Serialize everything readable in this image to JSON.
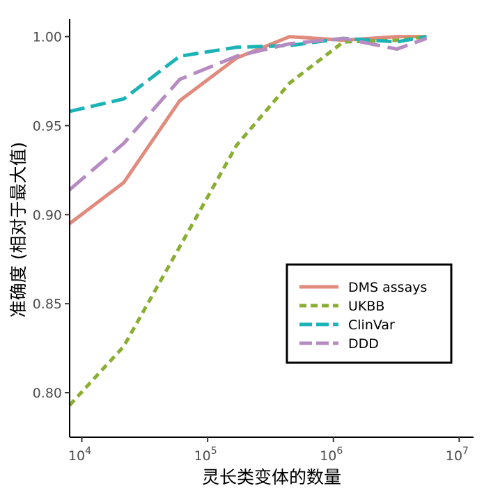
{
  "chart_data": {
    "type": "line",
    "xlabel": "灵长类变体的数量",
    "ylabel": "准确度 (相对于最大值)",
    "x_scale": "log10",
    "xlim": [
      8000,
      13000000
    ],
    "ylim": [
      0.775,
      1.01
    ],
    "x_ticks": [
      {
        "value": 10000,
        "base": "10",
        "exp": "4"
      },
      {
        "value": 100000,
        "base": "10",
        "exp": "5"
      },
      {
        "value": 1000000,
        "base": "10",
        "exp": "6"
      },
      {
        "value": 10000000,
        "base": "10",
        "exp": "7"
      }
    ],
    "y_ticks": [
      {
        "value": 0.8,
        "label": "0.80"
      },
      {
        "value": 0.85,
        "label": "0.85"
      },
      {
        "value": 0.9,
        "label": "0.90"
      },
      {
        "value": 0.95,
        "label": "0.95"
      },
      {
        "value": 1.0,
        "label": "1.00"
      }
    ],
    "grid": false,
    "legend_position": "bottom-right",
    "series": [
      {
        "name": "DMS assays",
        "color": "#E08B7D",
        "dash": "solid",
        "points": [
          [
            8000,
            0.895
          ],
          [
            21500,
            0.918
          ],
          [
            60000,
            0.964
          ],
          [
            170000,
            0.988
          ],
          [
            450000,
            1.0
          ],
          [
            1200000,
            0.998
          ],
          [
            3200000,
            1.0
          ],
          [
            5500000,
            1.0
          ]
        ]
      },
      {
        "name": "UKBB",
        "color": "#8AAE32",
        "dash": "dotted",
        "points": [
          [
            8000,
            0.793
          ],
          [
            21500,
            0.826
          ],
          [
            60000,
            0.882
          ],
          [
            170000,
            0.939
          ],
          [
            450000,
            0.974
          ],
          [
            1200000,
            0.997
          ],
          [
            3200000,
            0.998
          ],
          [
            5500000,
            1.0
          ]
        ]
      },
      {
        "name": "ClinVar",
        "color": "#1BB3B6",
        "dash": "dashed",
        "points": [
          [
            8000,
            0.958
          ],
          [
            21500,
            0.965
          ],
          [
            60000,
            0.989
          ],
          [
            170000,
            0.994
          ],
          [
            450000,
            0.995
          ],
          [
            1200000,
            0.999
          ],
          [
            3200000,
            0.997
          ],
          [
            5500000,
            1.0
          ]
        ]
      },
      {
        "name": "DDD",
        "color": "#B58BC2",
        "dash": "longdash",
        "points": [
          [
            8000,
            0.914
          ],
          [
            21500,
            0.94
          ],
          [
            60000,
            0.976
          ],
          [
            170000,
            0.989
          ],
          [
            450000,
            0.996
          ],
          [
            1200000,
            0.999
          ],
          [
            3200000,
            0.993
          ],
          [
            5500000,
            0.999
          ]
        ]
      }
    ]
  }
}
